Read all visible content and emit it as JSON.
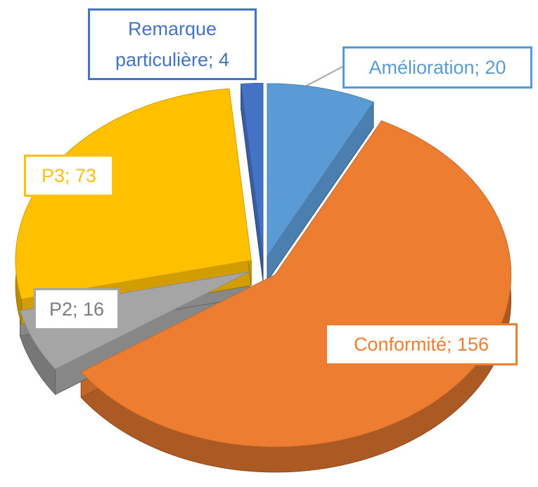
{
  "chart_data": {
    "type": "pie3d",
    "values": [
      20,
      156,
      16,
      73,
      4
    ],
    "value_labels": [
      "Amélioration; 20",
      "Conformité; 156",
      "P2; 16",
      "P3; 73",
      "Remarque particulière; 4"
    ],
    "colors": [
      "#5b9bd5",
      "#ed7d31",
      "#a5a5a5",
      "#ffc000",
      "#4472c4"
    ],
    "exploded": true
  }
}
